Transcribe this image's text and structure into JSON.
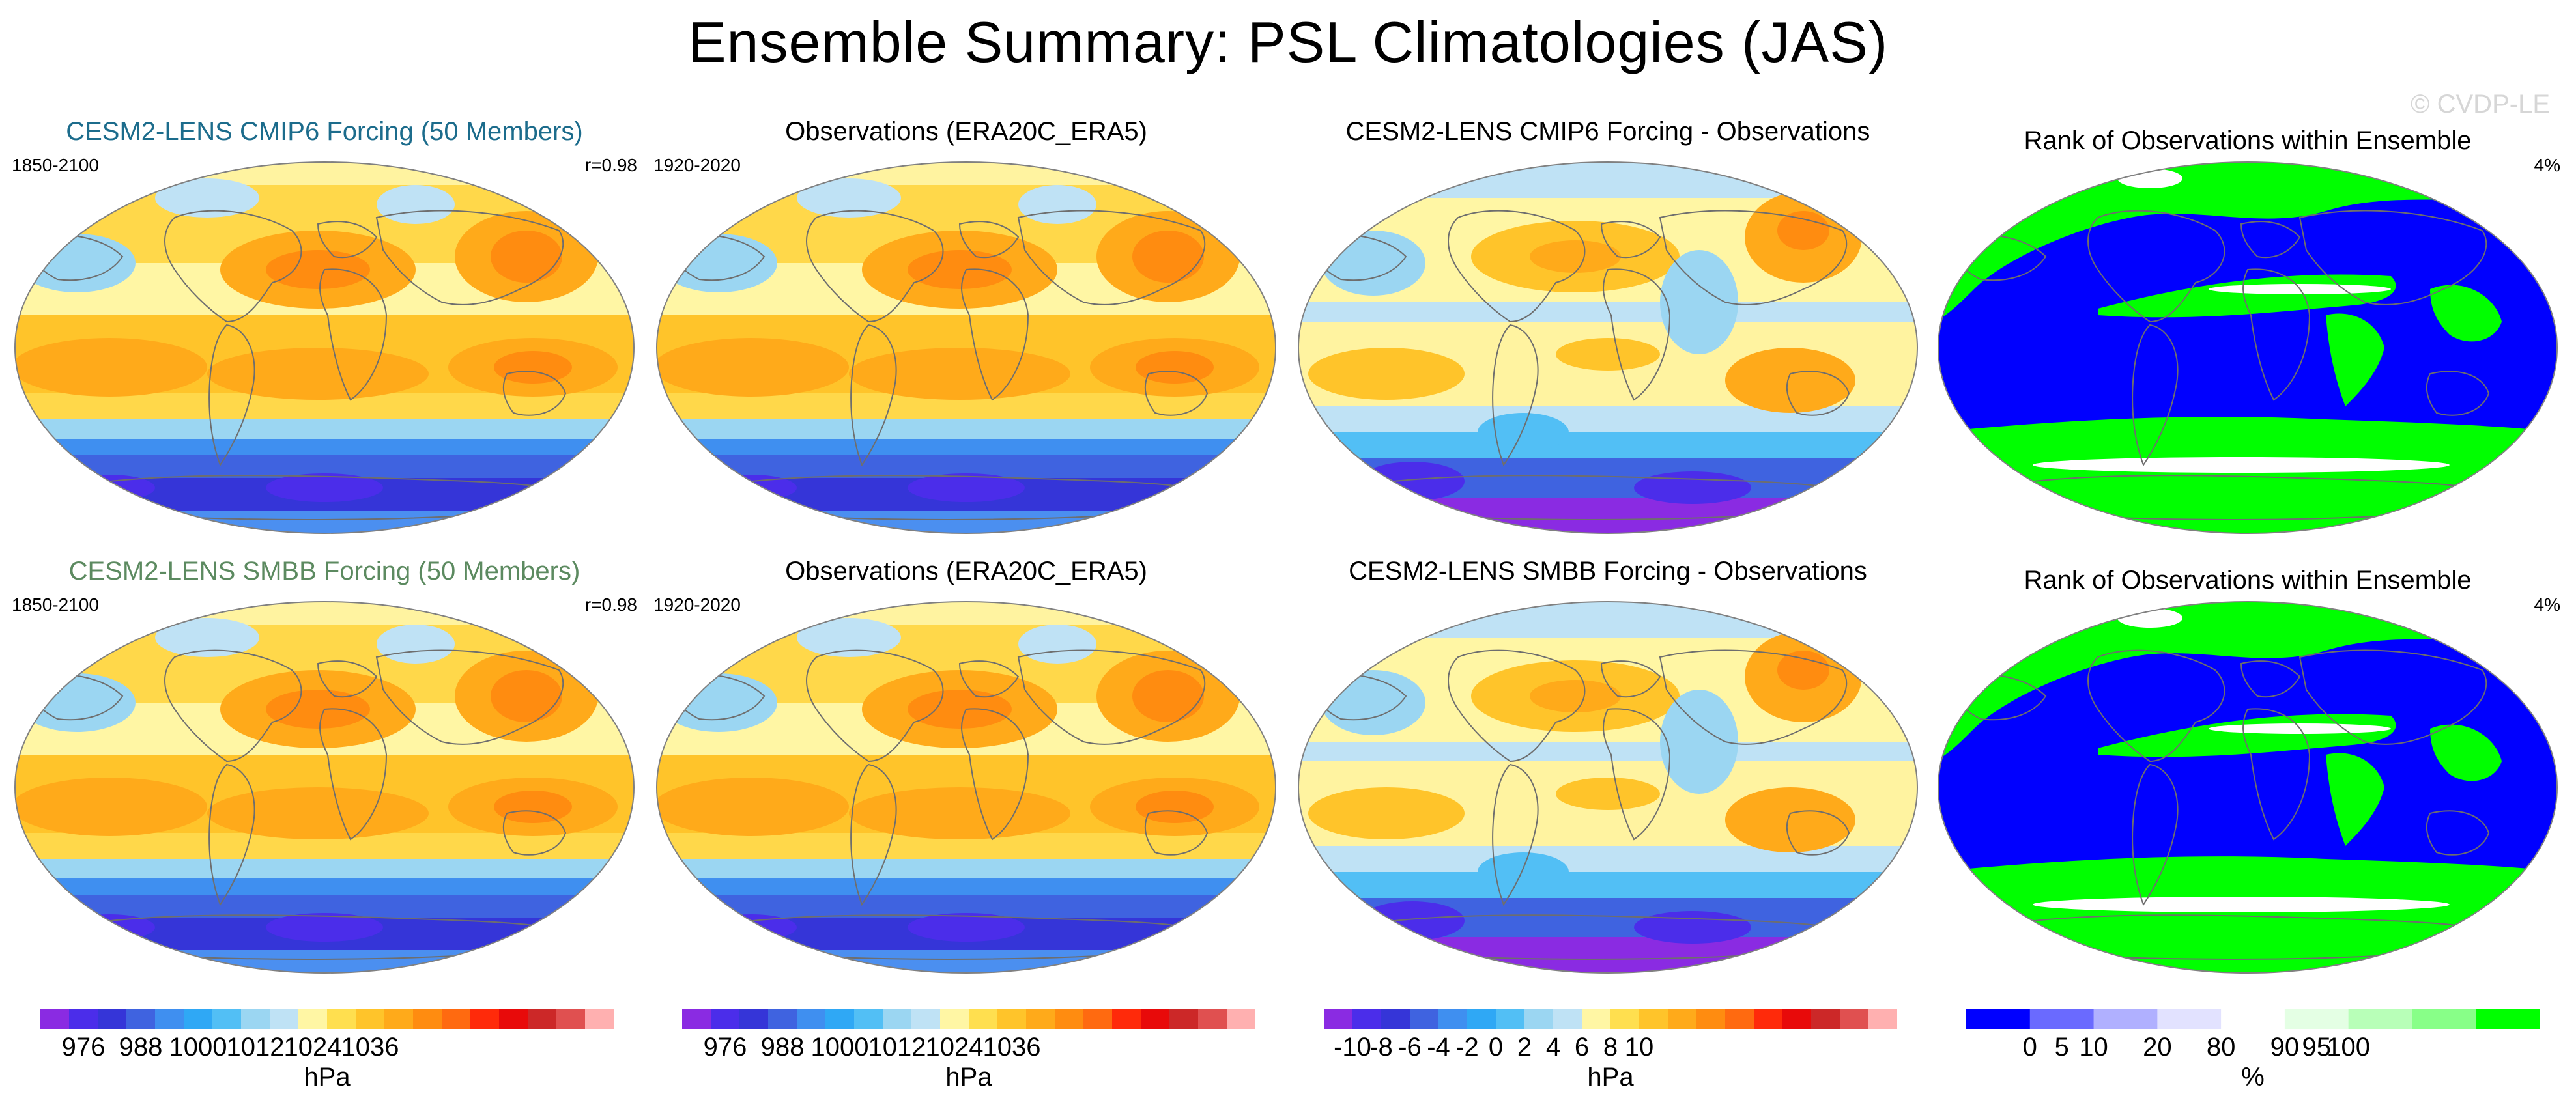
{
  "title": "Ensemble Summary: PSL Climatologies (JAS)",
  "watermark": "© CVDP-LE",
  "rows": [
    {
      "model_title": "CESM2-LENS CMIP6 Forcing (50 Members)",
      "model_title_color": "#1c6c8c",
      "model_years": "1850-2100",
      "pattern_corr": "r=0.98",
      "obs_title": "Observations (ERA20C_ERA5)",
      "obs_years": "1920-2020",
      "diff_title": "CESM2-LENS CMIP6 Forcing - Observations",
      "rank_title": "Rank of Observations within Ensemble",
      "rank_pct": "4%"
    },
    {
      "model_title": "CESM2-LENS SMBB Forcing (50 Members)",
      "model_title_color": "#5c8a60",
      "model_years": "1850-2100",
      "pattern_corr": "r=0.98",
      "obs_title": "Observations (ERA20C_ERA5)",
      "obs_years": "1920-2020",
      "diff_title": "CESM2-LENS SMBB Forcing - Observations",
      "rank_title": "Rank of Observations within Ensemble",
      "rank_pct": "4%"
    }
  ],
  "colorbars": [
    {
      "unit": "hPa",
      "labels": [
        "976",
        "988",
        "1000",
        "1012",
        "1024",
        "1036"
      ],
      "label_slots": [
        1.5,
        3.5,
        5.5,
        7.5,
        9.5,
        11.5
      ],
      "colors": [
        "#8a2be2",
        "#4b2dea",
        "#3535d8",
        "#3f63e0",
        "#3f8ff0",
        "#2fa8f5",
        "#52bff5",
        "#9bd6f2",
        "#bfe2f5",
        "#fff6a4",
        "#ffdf4f",
        "#ffc42a",
        "#ffaa1a",
        "#ff8c10",
        "#ff6a10",
        "#ff2a0a",
        "#e80a0a",
        "#cc2828",
        "#e05050",
        "#ffb0b0"
      ]
    },
    {
      "unit": "hPa",
      "labels": [
        "976",
        "988",
        "1000",
        "1012",
        "1024",
        "1036"
      ],
      "label_slots": [
        1.5,
        3.5,
        5.5,
        7.5,
        9.5,
        11.5
      ],
      "colors": [
        "#8a2be2",
        "#4b2dea",
        "#3535d8",
        "#3f63e0",
        "#3f8ff0",
        "#2fa8f5",
        "#52bff5",
        "#9bd6f2",
        "#bfe2f5",
        "#fff6a4",
        "#ffdf4f",
        "#ffc42a",
        "#ffaa1a",
        "#ff8c10",
        "#ff6a10",
        "#ff2a0a",
        "#e80a0a",
        "#cc2828",
        "#e05050",
        "#ffb0b0"
      ]
    },
    {
      "unit": "hPa",
      "labels": [
        "-10",
        "-8",
        "-6",
        "-4",
        "-2",
        "0",
        "2",
        "4",
        "6",
        "8",
        "10"
      ],
      "label_slots": [
        1,
        2,
        3,
        4,
        5,
        6,
        7,
        8,
        9,
        10,
        11
      ],
      "colors": [
        "#8a2be2",
        "#4b2dea",
        "#3535d8",
        "#3f63e0",
        "#3f8ff0",
        "#2fa8f5",
        "#52bff5",
        "#9bd6f2",
        "#bfe2f5",
        "#fff6a4",
        "#ffdf4f",
        "#ffc42a",
        "#ffaa1a",
        "#ff8c10",
        "#ff6a10",
        "#ff2a0a",
        "#e80a0a",
        "#cc2828",
        "#e05050",
        "#ffb0b0"
      ]
    },
    {
      "unit": "%",
      "labels": [
        "0",
        "5",
        "10",
        "20",
        "80",
        "90",
        "95",
        "100"
      ],
      "label_slots": [
        1,
        1.5,
        2,
        3,
        4,
        5,
        5.5,
        6
      ],
      "colors": [
        "#0000ff",
        "#6a6aff",
        "#b0b0ff",
        "#e2e2ff",
        "#ffffff",
        "#e4ffe4",
        "#b8ffb8",
        "#88ff88",
        "#00ff00"
      ]
    }
  ],
  "chart_data": [
    {
      "type": "heatmap",
      "panel": "row1-col1",
      "title": "CESM2-LENS CMIP6 Forcing (50 Members)",
      "left_label": "1850-2100",
      "right_label": "r=0.98",
      "variable": "PSL",
      "units": "hPa",
      "range": [
        970,
        1045
      ],
      "projection": "Robinson"
    },
    {
      "type": "heatmap",
      "panel": "row1-col2",
      "title": "Observations (ERA20C_ERA5)",
      "left_label": "1920-2020",
      "variable": "PSL",
      "units": "hPa",
      "range": [
        970,
        1045
      ],
      "projection": "Robinson"
    },
    {
      "type": "heatmap",
      "panel": "row1-col3",
      "title": "CESM2-LENS CMIP6 Forcing - Observations",
      "variable": "PSL difference",
      "units": "hPa",
      "range": [
        -10,
        10
      ],
      "projection": "Robinson"
    },
    {
      "type": "heatmap",
      "panel": "row1-col4",
      "title": "Rank of Observations within Ensemble",
      "right_label": "4%",
      "units": "%",
      "range": [
        0,
        100
      ],
      "projection": "Robinson"
    },
    {
      "type": "heatmap",
      "panel": "row2-col1",
      "title": "CESM2-LENS SMBB Forcing (50 Members)",
      "left_label": "1850-2100",
      "right_label": "r=0.98",
      "variable": "PSL",
      "units": "hPa",
      "range": [
        970,
        1045
      ],
      "projection": "Robinson"
    },
    {
      "type": "heatmap",
      "panel": "row2-col2",
      "title": "Observations (ERA20C_ERA5)",
      "left_label": "1920-2020",
      "variable": "PSL",
      "units": "hPa",
      "range": [
        970,
        1045
      ],
      "projection": "Robinson"
    },
    {
      "type": "heatmap",
      "panel": "row2-col3",
      "title": "CESM2-LENS SMBB Forcing - Observations",
      "variable": "PSL difference",
      "units": "hPa",
      "range": [
        -10,
        10
      ],
      "projection": "Robinson"
    },
    {
      "type": "heatmap",
      "panel": "row2-col4",
      "title": "Rank of Observations within Ensemble",
      "right_label": "4%",
      "units": "%",
      "range": [
        0,
        100
      ],
      "projection": "Robinson"
    }
  ]
}
